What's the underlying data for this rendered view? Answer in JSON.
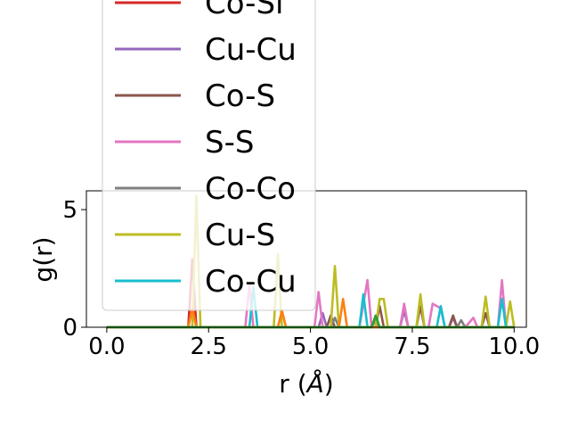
{
  "chart_data": {
    "type": "line",
    "xlabel": "r (",
    "xlabel_unit": "Å",
    "xlabel_close": ")",
    "ylabel": "g(r)",
    "xlim": [
      -0.5,
      10.3
    ],
    "ylim": [
      0,
      5.8
    ],
    "x_ticks": [
      0.0,
      2.5,
      5.0,
      7.5,
      10.0
    ],
    "x_tick_labels": [
      "0.0",
      "2.5",
      "5.0",
      "7.5",
      "10.0"
    ],
    "y_ticks": [
      0,
      5
    ],
    "y_tick_labels": [
      "0",
      "5"
    ],
    "grid": false,
    "legend_placement": "upper-left, overflowing above plot",
    "series": [
      {
        "name": "Co-Si",
        "color": "#d62728",
        "points": [
          [
            0,
            0
          ],
          [
            2.0,
            0
          ],
          [
            2.1,
            2.9
          ],
          [
            2.2,
            0
          ],
          [
            10,
            0
          ]
        ]
      },
      {
        "name": "Cu-Cu",
        "color": "#9467bd",
        "points": [
          [
            0,
            0
          ],
          [
            5.2,
            0
          ],
          [
            5.3,
            0.6
          ],
          [
            5.4,
            0
          ],
          [
            7.2,
            0
          ],
          [
            7.3,
            0.7
          ],
          [
            7.4,
            0
          ],
          [
            8.4,
            0
          ],
          [
            8.5,
            0.4
          ],
          [
            8.6,
            0
          ],
          [
            10,
            0
          ]
        ]
      },
      {
        "name": "Co-S",
        "color": "#8c564b",
        "points": [
          [
            0,
            0
          ],
          [
            5.4,
            0
          ],
          [
            5.5,
            0.5
          ],
          [
            5.6,
            0
          ],
          [
            6.6,
            0
          ],
          [
            6.7,
            0.9
          ],
          [
            6.8,
            0
          ],
          [
            7.6,
            0
          ],
          [
            7.7,
            0.9
          ],
          [
            7.8,
            0
          ],
          [
            8.4,
            0
          ],
          [
            8.5,
            0.5
          ],
          [
            8.6,
            0
          ],
          [
            9.2,
            0
          ],
          [
            9.3,
            0.6
          ],
          [
            9.4,
            0
          ],
          [
            10,
            0
          ]
        ]
      },
      {
        "name": "S-S",
        "color": "#e377c2",
        "points": [
          [
            0,
            0
          ],
          [
            3.4,
            0
          ],
          [
            3.5,
            1.8
          ],
          [
            3.6,
            0
          ],
          [
            5.1,
            0
          ],
          [
            5.2,
            1.5
          ],
          [
            5.3,
            0
          ],
          [
            6.2,
            0
          ],
          [
            6.4,
            2.0
          ],
          [
            6.5,
            0
          ],
          [
            7.2,
            0
          ],
          [
            7.3,
            1.0
          ],
          [
            7.4,
            0
          ],
          [
            7.9,
            0
          ],
          [
            8.0,
            1.0
          ],
          [
            8.2,
            0.8
          ],
          [
            8.3,
            0
          ],
          [
            8.8,
            0
          ],
          [
            9.0,
            0.4
          ],
          [
            9.1,
            0
          ],
          [
            9.6,
            0
          ],
          [
            9.7,
            2.0
          ],
          [
            9.8,
            0
          ],
          [
            10,
            0
          ]
        ]
      },
      {
        "name": "Co-Co",
        "color": "#7f7f7f",
        "points": [
          [
            0,
            0
          ],
          [
            5.5,
            0
          ],
          [
            5.6,
            0.4
          ],
          [
            5.7,
            0
          ],
          [
            6.5,
            0
          ],
          [
            6.6,
            0.3
          ],
          [
            6.7,
            0
          ],
          [
            8.6,
            0
          ],
          [
            8.7,
            0.3
          ],
          [
            8.8,
            0
          ],
          [
            10,
            0
          ]
        ]
      },
      {
        "name": "Cu-S",
        "color": "#bcbd22",
        "points": [
          [
            0,
            0
          ],
          [
            2.1,
            0
          ],
          [
            2.2,
            5.6
          ],
          [
            2.3,
            0
          ],
          [
            4.1,
            0
          ],
          [
            4.2,
            3.1
          ],
          [
            4.3,
            0
          ],
          [
            5.5,
            0
          ],
          [
            5.6,
            2.6
          ],
          [
            5.7,
            0
          ],
          [
            6.6,
            0
          ],
          [
            6.7,
            1.2
          ],
          [
            6.8,
            1.2
          ],
          [
            6.9,
            0
          ],
          [
            7.6,
            0
          ],
          [
            7.7,
            1.4
          ],
          [
            7.8,
            0
          ],
          [
            9.2,
            0
          ],
          [
            9.3,
            1.3
          ],
          [
            9.4,
            0
          ],
          [
            9.8,
            0
          ],
          [
            9.9,
            1.1
          ],
          [
            10,
            0
          ]
        ]
      },
      {
        "name": "Co-Cu",
        "color": "#17becf",
        "points": [
          [
            0,
            0
          ],
          [
            3.5,
            0
          ],
          [
            3.6,
            1.7
          ],
          [
            3.7,
            0
          ],
          [
            6.2,
            0
          ],
          [
            6.3,
            1.4
          ],
          [
            6.4,
            0
          ],
          [
            8.1,
            0
          ],
          [
            8.2,
            0.9
          ],
          [
            8.3,
            0
          ],
          [
            9.6,
            0
          ],
          [
            9.7,
            1.2
          ],
          [
            9.8,
            0
          ],
          [
            10,
            0
          ]
        ]
      },
      {
        "name": "",
        "color": "#ff7f0e",
        "points": [
          [
            0,
            0
          ],
          [
            2.0,
            0
          ],
          [
            2.1,
            0.8
          ],
          [
            2.2,
            0
          ],
          [
            4.2,
            0
          ],
          [
            4.3,
            0.7
          ],
          [
            4.4,
            0
          ],
          [
            5.7,
            0
          ],
          [
            5.8,
            1.2
          ],
          [
            5.9,
            0
          ],
          [
            10,
            0
          ]
        ]
      },
      {
        "name": "",
        "color": "#2ca02c",
        "points": [
          [
            0,
            0
          ],
          [
            6.5,
            0
          ],
          [
            6.6,
            0.5
          ],
          [
            6.7,
            0
          ],
          [
            10,
            0
          ]
        ]
      }
    ]
  }
}
